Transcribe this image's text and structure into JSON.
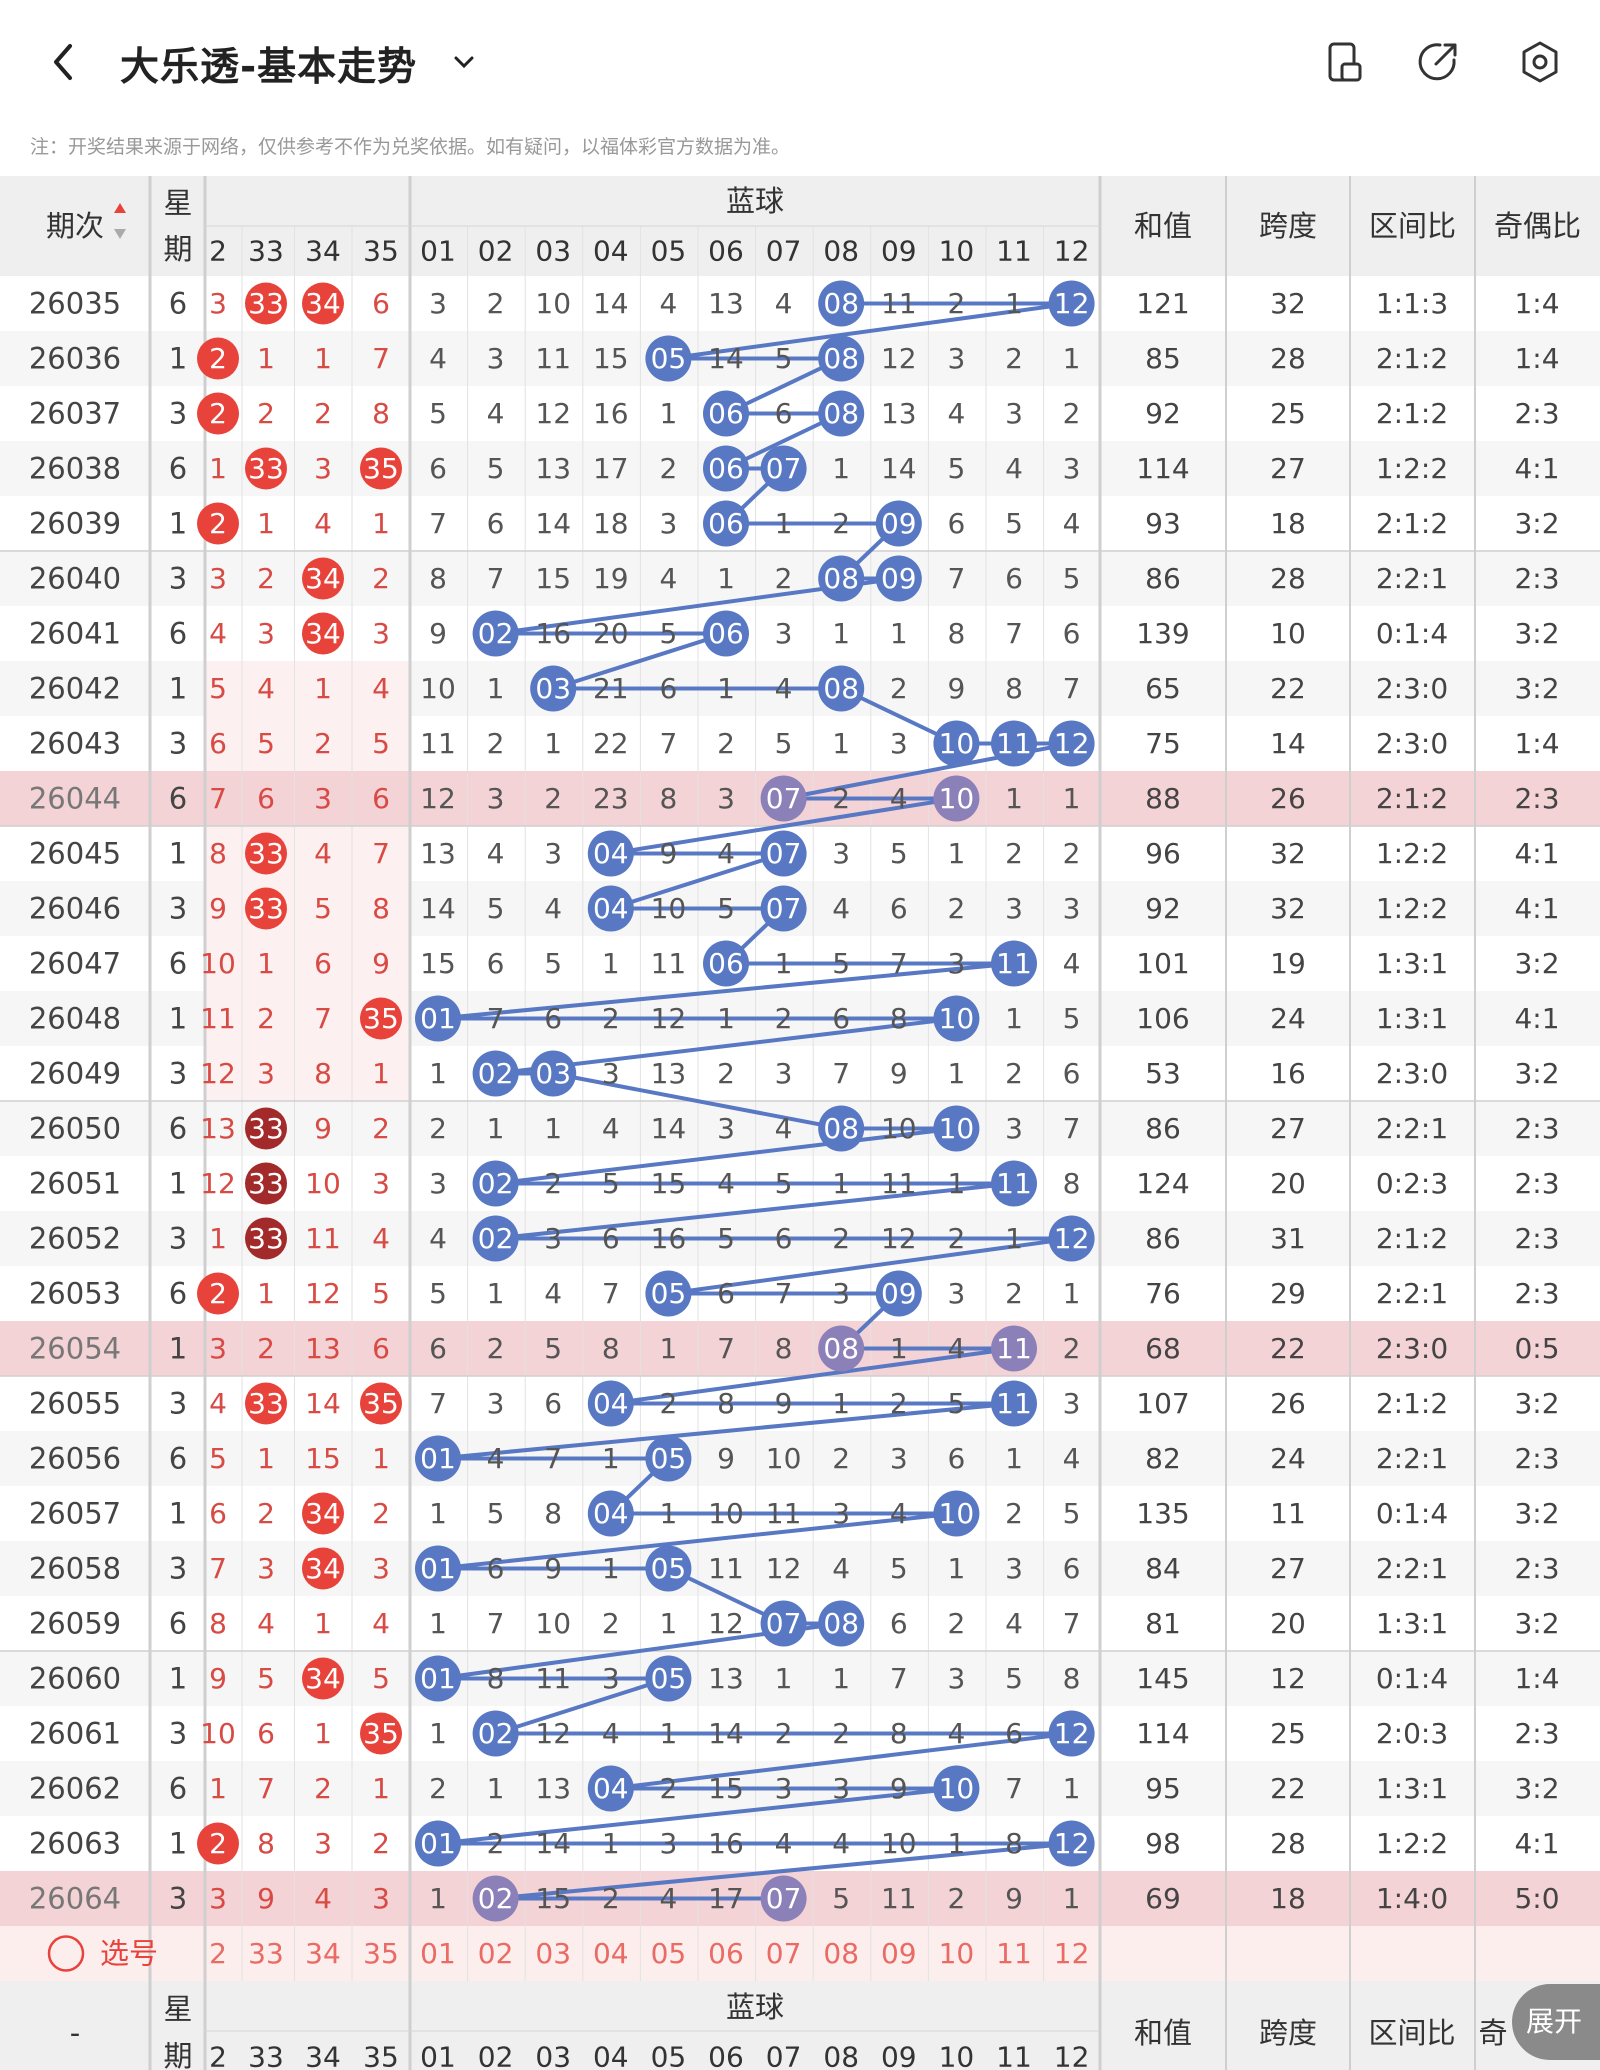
{
  "header": {
    "title": "大乐透-基本走势",
    "back_icon": "chevron-left-icon",
    "dropdown_icon": "chevron-down-icon",
    "actions": [
      "layout-icon",
      "share-icon",
      "settings-icon"
    ]
  },
  "notice": "注：开奖结果来源于网络，仅供参考不作为兑奖依据。如有疑问，以福体彩官方数据为准。",
  "table": {
    "col_issue": "期次",
    "col_week": "星期",
    "blue_group": "蓝球",
    "col_sum": "和值",
    "col_span": "跨度",
    "col_zone": "区间比",
    "col_odd": "奇偶比",
    "front_headers": [
      "2",
      "33",
      "34",
      "35"
    ],
    "blue_headers": [
      "01",
      "02",
      "03",
      "04",
      "05",
      "06",
      "07",
      "08",
      "09",
      "10",
      "11",
      "12"
    ],
    "rows": [
      {
        "issue": "26035",
        "week": "6",
        "f": [
          "3",
          "33",
          "34",
          "6"
        ],
        "b": [
          "3",
          "2",
          "10",
          "14",
          "4",
          "13",
          "4",
          "08",
          "11",
          "2",
          "1",
          "12"
        ],
        "sum": "121",
        "span": "32",
        "zone": "1:1:3",
        "odd": "1:4"
      },
      {
        "issue": "26036",
        "week": "1",
        "f": [
          "2",
          "1",
          "1",
          "7"
        ],
        "b": [
          "4",
          "3",
          "11",
          "15",
          "05",
          "14",
          "5",
          "08",
          "12",
          "3",
          "2",
          "1"
        ],
        "sum": "85",
        "span": "28",
        "zone": "2:1:2",
        "odd": "1:4"
      },
      {
        "issue": "26037",
        "week": "3",
        "f": [
          "2",
          "2",
          "2",
          "8"
        ],
        "b": [
          "5",
          "4",
          "12",
          "16",
          "1",
          "06",
          "6",
          "08",
          "13",
          "4",
          "3",
          "2"
        ],
        "sum": "92",
        "span": "25",
        "zone": "2:1:2",
        "odd": "2:3"
      },
      {
        "issue": "26038",
        "week": "6",
        "f": [
          "1",
          "33",
          "3",
          "35"
        ],
        "b": [
          "6",
          "5",
          "13",
          "17",
          "2",
          "06",
          "07",
          "1",
          "14",
          "5",
          "4",
          "3"
        ],
        "sum": "114",
        "span": "27",
        "zone": "1:2:2",
        "odd": "4:1"
      },
      {
        "issue": "26039",
        "week": "1",
        "f": [
          "2",
          "1",
          "4",
          "1"
        ],
        "b": [
          "7",
          "6",
          "14",
          "18",
          "3",
          "06",
          "1",
          "2",
          "09",
          "6",
          "5",
          "4"
        ],
        "sum": "93",
        "span": "18",
        "zone": "2:1:2",
        "odd": "3:2"
      },
      {
        "issue": "26040",
        "week": "3",
        "f": [
          "3",
          "2",
          "34",
          "2"
        ],
        "b": [
          "8",
          "7",
          "15",
          "19",
          "4",
          "1",
          "2",
          "08",
          "09",
          "7",
          "6",
          "5"
        ],
        "sum": "86",
        "span": "28",
        "zone": "2:2:1",
        "odd": "2:3"
      },
      {
        "issue": "26041",
        "week": "6",
        "f": [
          "4",
          "3",
          "34",
          "3"
        ],
        "b": [
          "9",
          "02",
          "16",
          "20",
          "5",
          "06",
          "3",
          "1",
          "1",
          "8",
          "7",
          "6"
        ],
        "sum": "139",
        "span": "10",
        "zone": "0:1:4",
        "odd": "3:2"
      },
      {
        "issue": "26042",
        "week": "1",
        "f": [
          "5",
          "4",
          "1",
          "4"
        ],
        "b": [
          "10",
          "1",
          "03",
          "21",
          "6",
          "1",
          "4",
          "08",
          "2",
          "9",
          "8",
          "7"
        ],
        "sum": "65",
        "span": "22",
        "zone": "2:3:0",
        "odd": "3:2"
      },
      {
        "issue": "26043",
        "week": "3",
        "f": [
          "6",
          "5",
          "2",
          "5"
        ],
        "b": [
          "11",
          "2",
          "1",
          "22",
          "7",
          "2",
          "5",
          "1",
          "3",
          "10",
          "11",
          "12"
        ],
        "sum": "75",
        "span": "14",
        "zone": "2:3:0",
        "odd": "1:4"
      },
      {
        "issue": "26044",
        "week": "6",
        "f": [
          "7",
          "6",
          "3",
          "6"
        ],
        "b": [
          "12",
          "3",
          "2",
          "23",
          "8",
          "3",
          "07",
          "2",
          "4",
          "10",
          "1",
          "1"
        ],
        "sum": "88",
        "span": "26",
        "zone": "2:1:2",
        "odd": "2:3"
      },
      {
        "issue": "26045",
        "week": "1",
        "f": [
          "8",
          "33",
          "4",
          "7"
        ],
        "b": [
          "13",
          "4",
          "3",
          "04",
          "9",
          "4",
          "07",
          "3",
          "5",
          "1",
          "2",
          "2"
        ],
        "sum": "96",
        "span": "32",
        "zone": "1:2:2",
        "odd": "4:1"
      },
      {
        "issue": "26046",
        "week": "3",
        "f": [
          "9",
          "33",
          "5",
          "8"
        ],
        "b": [
          "14",
          "5",
          "4",
          "04",
          "10",
          "5",
          "07",
          "4",
          "6",
          "2",
          "3",
          "3"
        ],
        "sum": "92",
        "span": "32",
        "zone": "1:2:2",
        "odd": "4:1"
      },
      {
        "issue": "26047",
        "week": "6",
        "f": [
          "10",
          "1",
          "6",
          "9"
        ],
        "b": [
          "15",
          "6",
          "5",
          "1",
          "11",
          "06",
          "1",
          "5",
          "7",
          "3",
          "11",
          "4"
        ],
        "sum": "101",
        "span": "19",
        "zone": "1:3:1",
        "odd": "3:2"
      },
      {
        "issue": "26048",
        "week": "1",
        "f": [
          "11",
          "2",
          "7",
          "35"
        ],
        "b": [
          "01",
          "7",
          "6",
          "2",
          "12",
          "1",
          "2",
          "6",
          "8",
          "10",
          "1",
          "5"
        ],
        "sum": "106",
        "span": "24",
        "zone": "1:3:1",
        "odd": "4:1"
      },
      {
        "issue": "26049",
        "week": "3",
        "f": [
          "12",
          "3",
          "8",
          "1"
        ],
        "b": [
          "1",
          "02",
          "03",
          "3",
          "13",
          "2",
          "3",
          "7",
          "9",
          "1",
          "2",
          "6"
        ],
        "sum": "53",
        "span": "16",
        "zone": "2:3:0",
        "odd": "3:2"
      },
      {
        "issue": "26050",
        "week": "6",
        "f": [
          "13",
          "33",
          "9",
          "2"
        ],
        "b": [
          "2",
          "1",
          "1",
          "4",
          "14",
          "3",
          "4",
          "08",
          "10",
          "10",
          "3",
          "7"
        ],
        "sum": "86",
        "span": "27",
        "zone": "2:2:1",
        "odd": "2:3"
      },
      {
        "issue": "26051",
        "week": "1",
        "f": [
          "12",
          "33",
          "10",
          "3"
        ],
        "b": [
          "3",
          "02",
          "2",
          "5",
          "15",
          "4",
          "5",
          "1",
          "11",
          "1",
          "11",
          "8"
        ],
        "sum": "124",
        "span": "20",
        "zone": "0:2:3",
        "odd": "2:3"
      },
      {
        "issue": "26052",
        "week": "3",
        "f": [
          "1",
          "33",
          "11",
          "4"
        ],
        "b": [
          "4",
          "02",
          "3",
          "6",
          "16",
          "5",
          "6",
          "2",
          "12",
          "2",
          "1",
          "12"
        ],
        "sum": "86",
        "span": "31",
        "zone": "2:1:2",
        "odd": "2:3"
      },
      {
        "issue": "26053",
        "week": "6",
        "f": [
          "2",
          "1",
          "12",
          "5"
        ],
        "b": [
          "5",
          "1",
          "4",
          "7",
          "05",
          "6",
          "7",
          "3",
          "09",
          "3",
          "2",
          "1"
        ],
        "sum": "76",
        "span": "29",
        "zone": "2:2:1",
        "odd": "2:3"
      },
      {
        "issue": "26054",
        "week": "1",
        "f": [
          "3",
          "2",
          "13",
          "6"
        ],
        "b": [
          "6",
          "2",
          "5",
          "8",
          "1",
          "7",
          "8",
          "08",
          "1",
          "4",
          "11",
          "2"
        ],
        "sum": "68",
        "span": "22",
        "zone": "2:3:0",
        "odd": "0:5"
      },
      {
        "issue": "26055",
        "week": "3",
        "f": [
          "4",
          "33",
          "14",
          "35"
        ],
        "b": [
          "7",
          "3",
          "6",
          "04",
          "2",
          "8",
          "9",
          "1",
          "2",
          "5",
          "11",
          "3"
        ],
        "sum": "107",
        "span": "26",
        "zone": "2:1:2",
        "odd": "3:2"
      },
      {
        "issue": "26056",
        "week": "6",
        "f": [
          "5",
          "1",
          "15",
          "1"
        ],
        "b": [
          "01",
          "4",
          "7",
          "1",
          "05",
          "9",
          "10",
          "2",
          "3",
          "6",
          "1",
          "4"
        ],
        "sum": "82",
        "span": "24",
        "zone": "2:2:1",
        "odd": "2:3"
      },
      {
        "issue": "26057",
        "week": "1",
        "f": [
          "6",
          "2",
          "34",
          "2"
        ],
        "b": [
          "1",
          "5",
          "8",
          "04",
          "1",
          "10",
          "11",
          "3",
          "4",
          "10",
          "2",
          "5"
        ],
        "sum": "135",
        "span": "11",
        "zone": "0:1:4",
        "odd": "3:2"
      },
      {
        "issue": "26058",
        "week": "3",
        "f": [
          "7",
          "3",
          "34",
          "3"
        ],
        "b": [
          "01",
          "6",
          "9",
          "1",
          "05",
          "11",
          "12",
          "4",
          "5",
          "1",
          "3",
          "6"
        ],
        "sum": "84",
        "span": "27",
        "zone": "2:2:1",
        "odd": "2:3"
      },
      {
        "issue": "26059",
        "week": "6",
        "f": [
          "8",
          "4",
          "1",
          "4"
        ],
        "b": [
          "1",
          "7",
          "10",
          "2",
          "1",
          "12",
          "07",
          "08",
          "6",
          "2",
          "4",
          "7"
        ],
        "sum": "81",
        "span": "20",
        "zone": "1:3:1",
        "odd": "3:2"
      },
      {
        "issue": "26060",
        "week": "1",
        "f": [
          "9",
          "5",
          "34",
          "5"
        ],
        "b": [
          "01",
          "8",
          "11",
          "3",
          "05",
          "13",
          "1",
          "1",
          "7",
          "3",
          "5",
          "8"
        ],
        "sum": "145",
        "span": "12",
        "zone": "0:1:4",
        "odd": "1:4"
      },
      {
        "issue": "26061",
        "week": "3",
        "f": [
          "10",
          "6",
          "1",
          "35"
        ],
        "b": [
          "1",
          "02",
          "12",
          "4",
          "1",
          "14",
          "2",
          "2",
          "8",
          "4",
          "6",
          "12"
        ],
        "sum": "114",
        "span": "25",
        "zone": "2:0:3",
        "odd": "2:3"
      },
      {
        "issue": "26062",
        "week": "6",
        "f": [
          "1",
          "7",
          "2",
          "1"
        ],
        "b": [
          "2",
          "1",
          "13",
          "04",
          "2",
          "15",
          "3",
          "3",
          "9",
          "10",
          "7",
          "1"
        ],
        "sum": "95",
        "span": "22",
        "zone": "1:3:1",
        "odd": "3:2"
      },
      {
        "issue": "26063",
        "week": "1",
        "f": [
          "2",
          "8",
          "3",
          "2"
        ],
        "b": [
          "01",
          "2",
          "14",
          "1",
          "3",
          "16",
          "4",
          "4",
          "10",
          "1",
          "8",
          "12"
        ],
        "sum": "98",
        "span": "28",
        "zone": "1:2:2",
        "odd": "4:1"
      },
      {
        "issue": "26064",
        "week": "3",
        "f": [
          "3",
          "9",
          "4",
          "3"
        ],
        "b": [
          "1",
          "02",
          "15",
          "2",
          "4",
          "17",
          "07",
          "5",
          "11",
          "2",
          "9",
          "1"
        ],
        "sum": "69",
        "span": "18",
        "zone": "1:4:0",
        "odd": "5:0"
      }
    ],
    "select_label": "选号",
    "select_front": [
      "2",
      "33",
      "34",
      "35"
    ],
    "select_blue": [
      "01",
      "02",
      "03",
      "04",
      "05",
      "06",
      "07",
      "08",
      "09",
      "10",
      "11",
      "12"
    ],
    "footer_issue": "-",
    "footer_week": "星期",
    "footer_blue_group": "蓝球",
    "footer_sum": "和值",
    "footer_span": "跨度",
    "footer_zone": "区间比",
    "footer_odd": "奇",
    "expand_label": "展开"
  },
  "colors": {
    "red_ball": "#e8433b",
    "dark_red_ball": "#a32a2a",
    "blue_ball": "#5878c4",
    "purple_ball": "#8c80b8",
    "highlight_row": "#f3d3d6"
  }
}
